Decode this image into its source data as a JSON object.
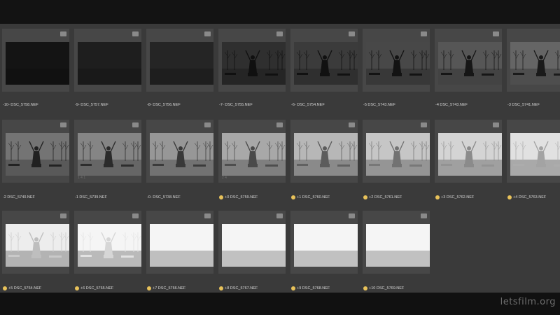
{
  "watermark": "letsfilm.org",
  "accent_color": "#e8c25a",
  "frames": [
    {
      "label": "-10- DSC_5758.NEF",
      "tone": 0.04,
      "starred": false,
      "meta": ""
    },
    {
      "label": "-9- DSC_5757.NEF",
      "tone": 0.08,
      "starred": false,
      "meta": ""
    },
    {
      "label": "-8- DSC_5756.NEF",
      "tone": 0.11,
      "starred": false,
      "meta": ""
    },
    {
      "label": "-7- DSC_5755.NEF",
      "tone": 0.15,
      "starred": false,
      "meta": ""
    },
    {
      "label": "-6- DSC_5754.NEF",
      "tone": 0.2,
      "starred": false,
      "meta": ""
    },
    {
      "label": "-5 DSC_5743.NEF",
      "tone": 0.25,
      "starred": false,
      "meta": ""
    },
    {
      "label": "-4 DSC_5743.NEF",
      "tone": 0.31,
      "starred": false,
      "meta": ""
    },
    {
      "label": "-3 DSC_5741.NEF",
      "tone": 0.37,
      "starred": false,
      "meta": ""
    },
    {
      "label": "-2 DSC_5740.NEF",
      "tone": 0.43,
      "starred": false,
      "meta": ""
    },
    {
      "label": "-1 DSC_5739.NEF",
      "tone": 0.5,
      "starred": false,
      "meta": "1 4 1"
    },
    {
      "label": "-0- DSC_5738.NEF",
      "tone": 0.57,
      "starred": false,
      "meta": ""
    },
    {
      "label": "+0 DSC_5759.NEF",
      "tone": 0.64,
      "starred": true,
      "meta": "2 4"
    },
    {
      "label": "+1 DSC_5760.NEF",
      "tone": 0.7,
      "starred": true,
      "meta": ""
    },
    {
      "label": "+2 DSC_5761.NEF",
      "tone": 0.76,
      "starred": true,
      "meta": ""
    },
    {
      "label": "+3 DSC_5762.NEF",
      "tone": 0.82,
      "starred": true,
      "meta": ""
    },
    {
      "label": "+4 DSC_5763.NEF",
      "tone": 0.87,
      "starred": true,
      "meta": ""
    },
    {
      "label": "+5 DSC_5764.NEF",
      "tone": 0.92,
      "starred": true,
      "meta": ""
    },
    {
      "label": "+6 DSC_5765.NEF",
      "tone": 0.96,
      "starred": true,
      "meta": ""
    },
    {
      "label": "+7 DSC_5766.NEF",
      "tone": 0.99,
      "starred": true,
      "meta": ""
    },
    {
      "label": "+8 DSC_5767.NEF",
      "tone": 1.0,
      "starred": true,
      "meta": ""
    },
    {
      "label": "+9 DSC_5768.NEF",
      "tone": 1.0,
      "starred": true,
      "meta": ""
    },
    {
      "label": "+10 DSC_5769.NEF",
      "tone": 1.0,
      "starred": true,
      "meta": ""
    }
  ]
}
